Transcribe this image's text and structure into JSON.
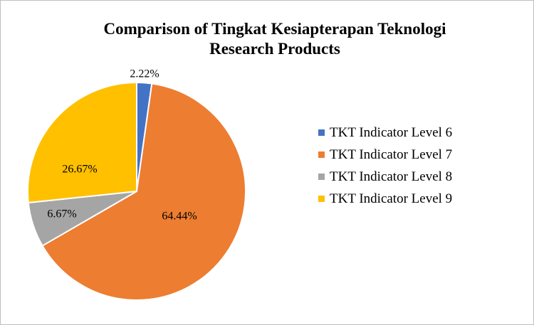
{
  "chart_data": {
    "type": "pie",
    "title_line1": "Comparison of Tingkat Kesiapterapan Teknologi",
    "title_line2": "Research Products",
    "categories": [
      "TKT Indicator Level 6",
      "TKT Indicator Level 7",
      "TKT Indicator Level 8",
      "TKT Indicator Level 9"
    ],
    "values": [
      2.22,
      64.44,
      6.67,
      26.67
    ],
    "labels": [
      "2.22%",
      "64.44%",
      "6.67%",
      "26.67%"
    ],
    "colors": [
      "#4472C4",
      "#ED7D31",
      "#A5A5A5",
      "#FFC000"
    ],
    "legend_position": "right"
  }
}
